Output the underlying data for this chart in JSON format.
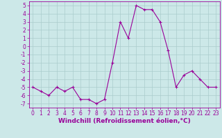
{
  "x": [
    0,
    1,
    2,
    3,
    4,
    5,
    6,
    7,
    8,
    9,
    10,
    11,
    12,
    13,
    14,
    15,
    16,
    17,
    18,
    19,
    20,
    21,
    22,
    23
  ],
  "y": [
    -5,
    -5.5,
    -6,
    -5,
    -5.5,
    -5,
    -6.5,
    -6.5,
    -7,
    -6.5,
    -2,
    3,
    1,
    5,
    4.5,
    4.5,
    3,
    -0.5,
    -5,
    -3.5,
    -3,
    -4,
    -5,
    -5
  ],
  "line_color": "#990099",
  "marker": "+",
  "marker_size": 3,
  "bg_color": "#cce8e8",
  "grid_color": "#aacccc",
  "xlabel": "Windchill (Refroidissement éolien,°C)",
  "ylim": [
    -7.5,
    5.5
  ],
  "xlim": [
    -0.5,
    23.5
  ],
  "yticks": [
    -7,
    -6,
    -5,
    -4,
    -3,
    -2,
    -1,
    0,
    1,
    2,
    3,
    4,
    5
  ],
  "xticks": [
    0,
    1,
    2,
    3,
    4,
    5,
    6,
    7,
    8,
    9,
    10,
    11,
    12,
    13,
    14,
    15,
    16,
    17,
    18,
    19,
    20,
    21,
    22,
    23
  ],
  "axis_color": "#990099",
  "tick_color": "#990099",
  "label_fontsize": 6.5,
  "tick_fontsize": 5.5
}
